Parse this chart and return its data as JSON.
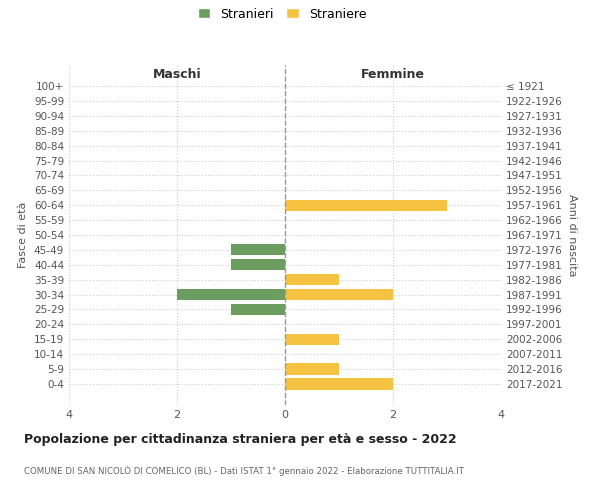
{
  "age_groups": [
    "100+",
    "95-99",
    "90-94",
    "85-89",
    "80-84",
    "75-79",
    "70-74",
    "65-69",
    "60-64",
    "55-59",
    "50-54",
    "45-49",
    "40-44",
    "35-39",
    "30-34",
    "25-29",
    "20-24",
    "15-19",
    "10-14",
    "5-9",
    "0-4"
  ],
  "birth_years": [
    "≤ 1921",
    "1922-1926",
    "1927-1931",
    "1932-1936",
    "1937-1941",
    "1942-1946",
    "1947-1951",
    "1952-1956",
    "1957-1961",
    "1962-1966",
    "1967-1971",
    "1972-1976",
    "1977-1981",
    "1982-1986",
    "1987-1991",
    "1992-1996",
    "1997-2001",
    "2002-2006",
    "2007-2011",
    "2012-2016",
    "2017-2021"
  ],
  "maschi": [
    0,
    0,
    0,
    0,
    0,
    0,
    0,
    0,
    0,
    0,
    0,
    1,
    1,
    0,
    2,
    1,
    0,
    0,
    0,
    0,
    0
  ],
  "femmine": [
    0,
    0,
    0,
    0,
    0,
    0,
    0,
    0,
    3,
    0,
    0,
    0,
    0,
    1,
    2,
    0,
    0,
    1,
    0,
    1,
    2
  ],
  "maschi_color": "#6b9e5e",
  "femmine_color": "#f5c242",
  "title": "Popolazione per cittadinanza straniera per età e sesso - 2022",
  "subtitle": "COMUNE DI SAN NICOLÒ DI COMELICO (BL) - Dati ISTAT 1° gennaio 2022 - Elaborazione TUTTITALIA.IT",
  "xlabel_maschi": "Maschi",
  "xlabel_femmine": "Femmine",
  "ylabel_left": "Fasce di età",
  "ylabel_right": "Anni di nascita",
  "legend_maschi": "Stranieri",
  "legend_femmine": "Straniere",
  "xlim": 4,
  "background_color": "#ffffff",
  "grid_color": "#cccccc"
}
